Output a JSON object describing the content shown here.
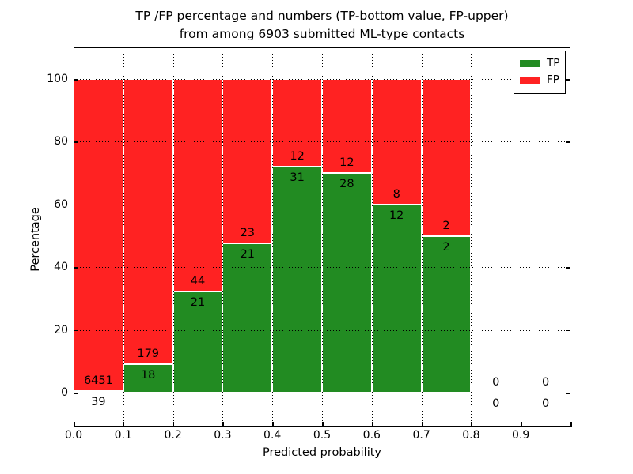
{
  "title": {
    "line1": "TP /FP percentage and numbers (TP-bottom value, FP-upper)",
    "line2": "from among 6903 submitted ML-type contacts"
  },
  "chart_data": {
    "type": "bar",
    "stacked": true,
    "normalized_to_percent": true,
    "title": "TP /FP percentage and numbers (TP-bottom value, FP-upper)\nfrom among 6903 submitted ML-type contacts",
    "total_contacts": 6903,
    "xlabel": "Predicted probability",
    "ylabel": "Percentage",
    "xlim": [
      0.0,
      1.0
    ],
    "ylim": [
      -10.8,
      110.1
    ],
    "grid": "dotted",
    "bin_starts": [
      0.0,
      0.1,
      0.2,
      0.3,
      0.4,
      0.5,
      0.6,
      0.7,
      0.8,
      0.9
    ],
    "bin_width": 0.1,
    "x_tick_labels": [
      "0.0",
      "0.1",
      "0.2",
      "0.3",
      "0.4",
      "0.5",
      "0.6",
      "0.7",
      "0.8",
      "0.9"
    ],
    "y_ticks": [
      0,
      20,
      40,
      60,
      80,
      100
    ],
    "y_tick_labels": [
      "0",
      "20",
      "40",
      "60",
      "80",
      "100"
    ],
    "series": [
      {
        "name": "TP",
        "color": "#228b22",
        "counts": [
          39,
          18,
          21,
          21,
          31,
          28,
          12,
          2,
          0,
          0
        ]
      },
      {
        "name": "FP",
        "color": "#ff2222",
        "counts": [
          6451,
          179,
          44,
          23,
          12,
          12,
          8,
          2,
          0,
          0
        ]
      }
    ],
    "tp_percent": [
      0.6,
      9.1,
      32.3,
      47.7,
      72.1,
      70.0,
      60.0,
      50.0,
      0.0,
      0.0
    ],
    "bar_edge_color": "#ffffff",
    "legend": {
      "position": "upper right",
      "entries": [
        {
          "label": "TP",
          "color": "#228b22"
        },
        {
          "label": "FP",
          "color": "#ff2222"
        }
      ]
    }
  }
}
